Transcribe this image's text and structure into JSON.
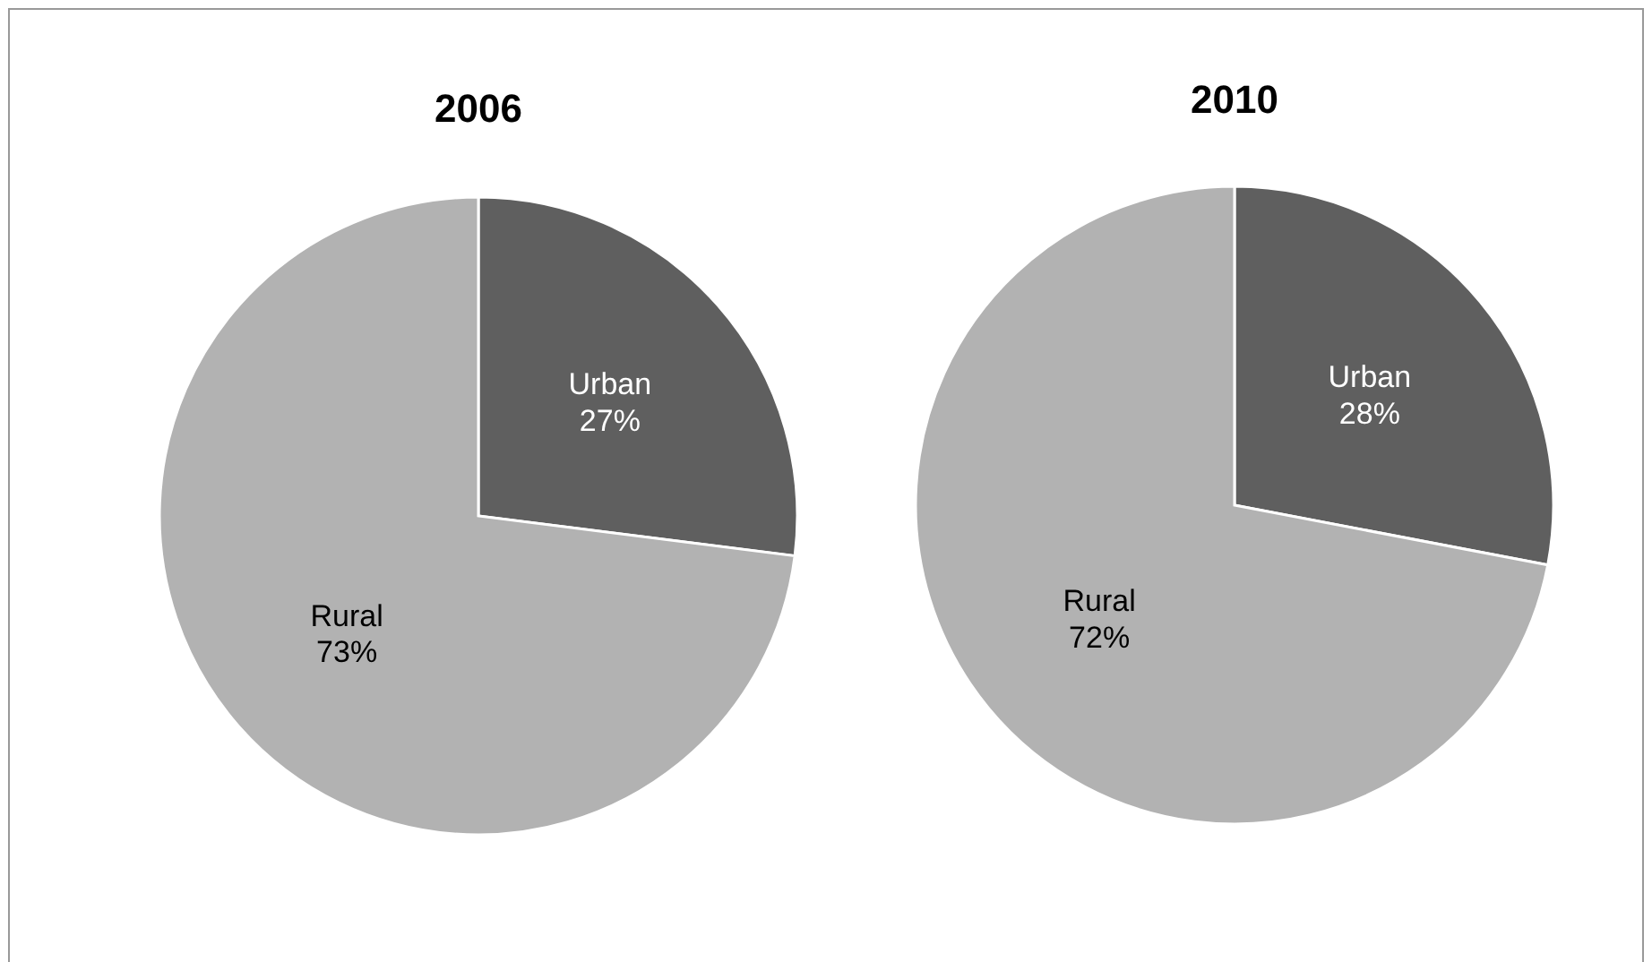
{
  "chart_data": [
    {
      "type": "pie",
      "title": "2006",
      "categories": [
        "Urban",
        "Rural"
      ],
      "values": [
        27,
        73
      ],
      "colors": [
        "#5f5f5f",
        "#b2b2b2"
      ],
      "value_labels": [
        "27%",
        "73%"
      ]
    },
    {
      "type": "pie",
      "title": "2010",
      "categories": [
        "Urban",
        "Rural"
      ],
      "values": [
        28,
        72
      ],
      "colors": [
        "#5f5f5f",
        "#b2b2b2"
      ],
      "value_labels": [
        "28%",
        "72%"
      ]
    }
  ]
}
